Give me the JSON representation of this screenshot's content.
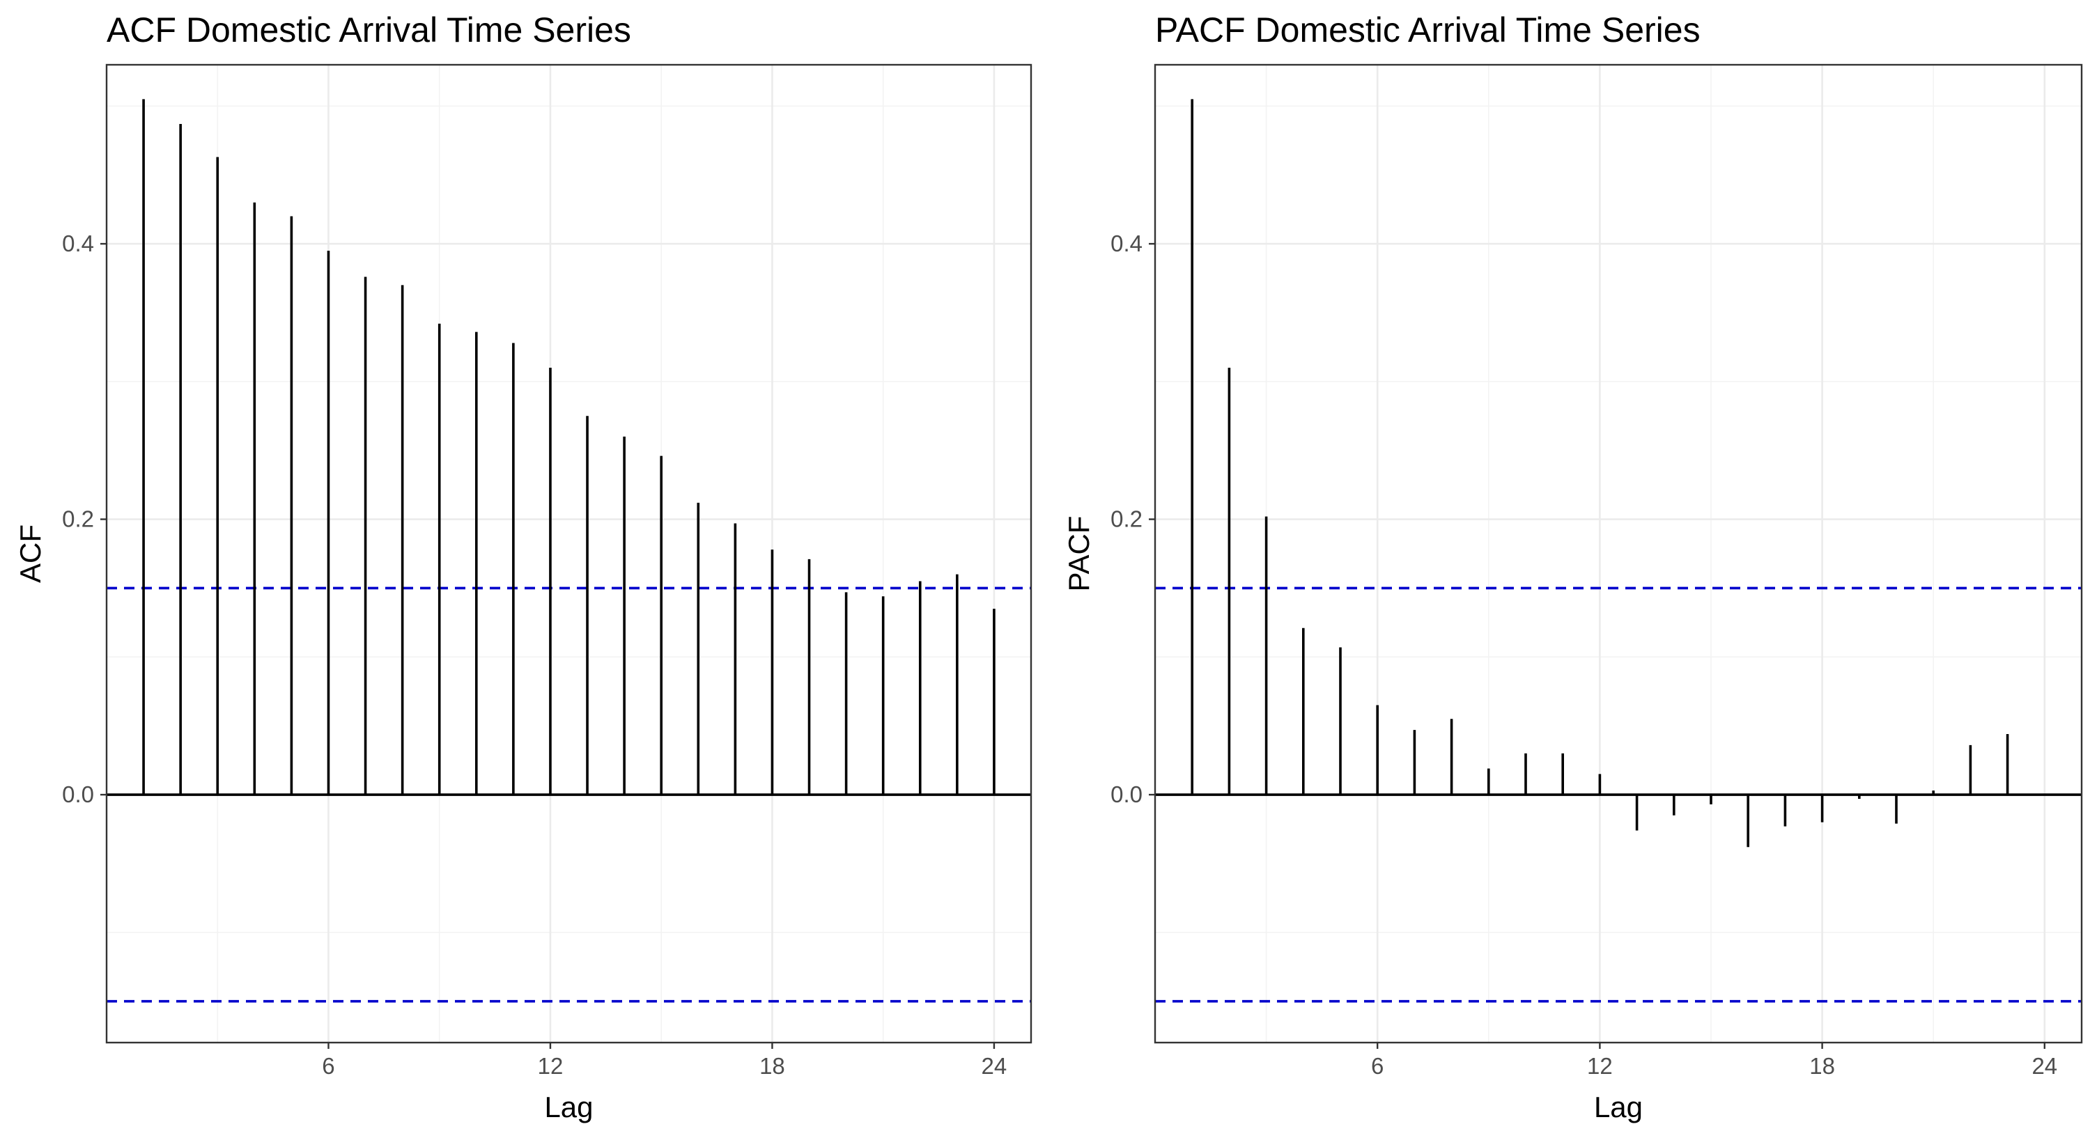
{
  "chart_data": [
    {
      "type": "bar",
      "title": "ACF Domestic Arrival Time Series",
      "xlabel": "Lag",
      "ylabel": "ACF",
      "x_ticks": [
        6,
        12,
        18,
        24
      ],
      "y_ticks": [
        0.0,
        0.2,
        0.4
      ],
      "x_tick_labels": [
        "6",
        "12",
        "18",
        "24"
      ],
      "y_tick_labels": [
        "0.0",
        "0.2",
        "0.4"
      ],
      "xlim": [
        0,
        25
      ],
      "ylim": [
        -0.18,
        0.53
      ],
      "grid": true,
      "confidence_bounds": [
        0.15,
        -0.15
      ],
      "lags": [
        1,
        2,
        3,
        4,
        5,
        6,
        7,
        8,
        9,
        10,
        11,
        12,
        13,
        14,
        15,
        16,
        17,
        18,
        19,
        20,
        21,
        22,
        23,
        24
      ],
      "values": [
        0.505,
        0.487,
        0.463,
        0.43,
        0.42,
        0.395,
        0.376,
        0.37,
        0.342,
        0.336,
        0.328,
        0.31,
        0.275,
        0.26,
        0.246,
        0.212,
        0.197,
        0.178,
        0.171,
        0.147,
        0.144,
        0.155,
        0.16,
        0.135
      ]
    },
    {
      "type": "bar",
      "title": "PACF Domestic Arrival Time Series",
      "xlabel": "Lag",
      "ylabel": "PACF",
      "x_ticks": [
        6,
        12,
        18,
        24
      ],
      "y_ticks": [
        0.0,
        0.2,
        0.4
      ],
      "x_tick_labels": [
        "6",
        "12",
        "18",
        "24"
      ],
      "y_tick_labels": [
        "0.0",
        "0.2",
        "0.4"
      ],
      "xlim": [
        0,
        25
      ],
      "ylim": [
        -0.18,
        0.53
      ],
      "grid": true,
      "confidence_bounds": [
        0.15,
        -0.15
      ],
      "lags": [
        1,
        2,
        3,
        4,
        5,
        6,
        7,
        8,
        9,
        10,
        11,
        12,
        13,
        14,
        15,
        16,
        17,
        18,
        19,
        20,
        21,
        22,
        23,
        24
      ],
      "values": [
        0.505,
        0.31,
        0.202,
        0.121,
        0.107,
        0.065,
        0.047,
        0.055,
        0.019,
        0.03,
        0.03,
        0.015,
        -0.026,
        -0.015,
        -0.007,
        -0.038,
        -0.023,
        -0.02,
        -0.003,
        -0.021,
        0.003,
        0.036,
        0.044,
        0.0
      ]
    }
  ]
}
